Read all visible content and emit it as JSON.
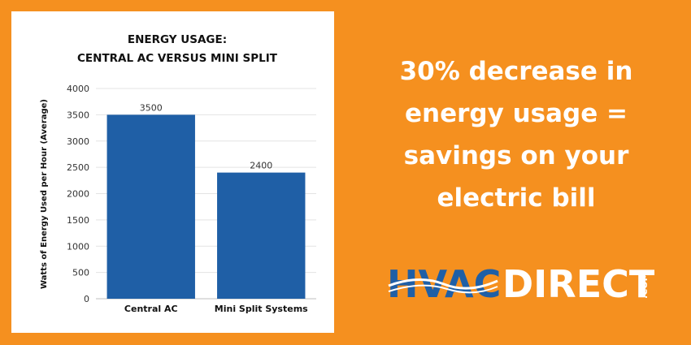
{
  "colors": {
    "background": "#F5901F",
    "bar": "#1F5FA6",
    "logo_blue": "#1F5FA6",
    "text_white": "#FFFFFF"
  },
  "chart_data": {
    "type": "bar",
    "title_lines": [
      "ENERGY USAGE:",
      "CENTRAL AC VERSUS MINI SPLIT"
    ],
    "xlabel": "",
    "ylabel": "Watts of Energy Used per Hour (Average)",
    "categories": [
      "Central AC",
      "Mini Split Systems"
    ],
    "values": [
      3500,
      2400
    ],
    "data_labels": [
      "3500",
      "2400"
    ],
    "ylim": [
      0,
      4000
    ],
    "yticks": [
      0,
      500,
      1000,
      1500,
      2000,
      2500,
      3000,
      3500,
      4000
    ],
    "grid": true,
    "legend": "none"
  },
  "headline": {
    "lines": [
      "30% decrease in",
      "energy usage =",
      "savings on your",
      "electric bill"
    ]
  },
  "logo": {
    "part1": "HVAC",
    "part2": "DIRECT",
    "suffix": ".COM"
  }
}
